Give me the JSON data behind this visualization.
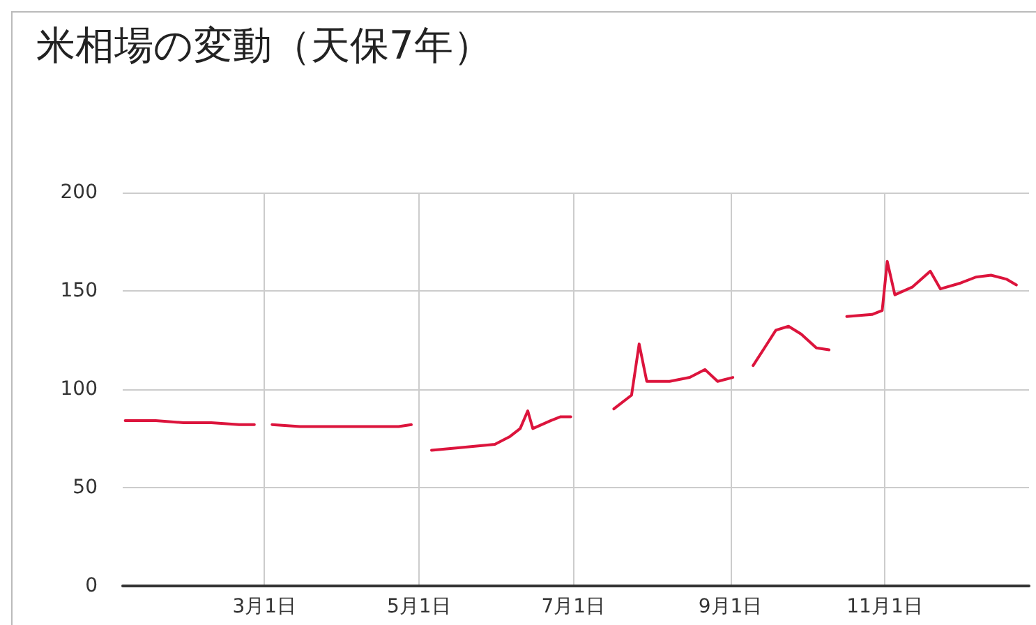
{
  "chart_data": {
    "type": "line",
    "title": "米相場の変動（天保7年）",
    "x": [
      "--01-06",
      "--01-18",
      "--01-29",
      "--02-09",
      "--02-20",
      "--02-26",
      "--02-28",
      "--03-04",
      "--03-15",
      "--03-29",
      "--04-12",
      "--04-23",
      "--04-28",
      "--05-02",
      "--05-06",
      "--05-15",
      "--05-23",
      "--05-31",
      "--06-06",
      "--06-10",
      "--06-13",
      "--06-15",
      "--06-22",
      "--06-26",
      "--06-30",
      "--07-04",
      "--07-17",
      "--07-24",
      "--07-27",
      "--07-30",
      "--08-08",
      "--08-16",
      "--08-22",
      "--08-27",
      "--09-02",
      "--09-06",
      "--09-10",
      "--09-15",
      "--09-19",
      "--09-24",
      "--09-29",
      "--10-05",
      "--10-10",
      "--10-14",
      "--10-17",
      "--10-27",
      "--10-31",
      "--11-02",
      "--11-05",
      "--11-12",
      "--11-19",
      "--11-23",
      "--12-01",
      "--12-07",
      "--12-13",
      "--12-19",
      "--12-23"
    ],
    "series": [
      {
        "color": "#dc143c",
        "values": [
          84,
          84,
          83,
          83,
          82,
          82,
          null,
          82,
          81,
          81,
          81,
          81,
          82,
          null,
          69,
          70,
          71,
          72,
          76,
          80,
          89,
          80,
          84,
          86,
          86,
          null,
          90,
          97,
          123,
          104,
          104,
          106,
          110,
          104,
          106,
          null,
          112,
          122,
          130,
          132,
          128,
          121,
          120,
          null,
          137,
          138,
          140,
          165,
          148,
          152,
          160,
          151,
          154,
          157,
          158,
          156,
          153
        ]
      }
    ],
    "xlim": [
      "--01-05",
      "--12-28"
    ],
    "xticks": [
      {
        "value": "--03-01",
        "label": "3月1日"
      },
      {
        "value": "--05-01",
        "label": "5月1日"
      },
      {
        "value": "--07-01",
        "label": "7月1日"
      },
      {
        "value": "--09-01",
        "label": "9月1日"
      },
      {
        "value": "--11-01",
        "label": "11月1日"
      }
    ],
    "ylim": [
      0,
      200
    ],
    "yticks": [
      0,
      50,
      100,
      150,
      200
    ],
    "grid": true,
    "marker": "none",
    "line_style": "solid"
  }
}
